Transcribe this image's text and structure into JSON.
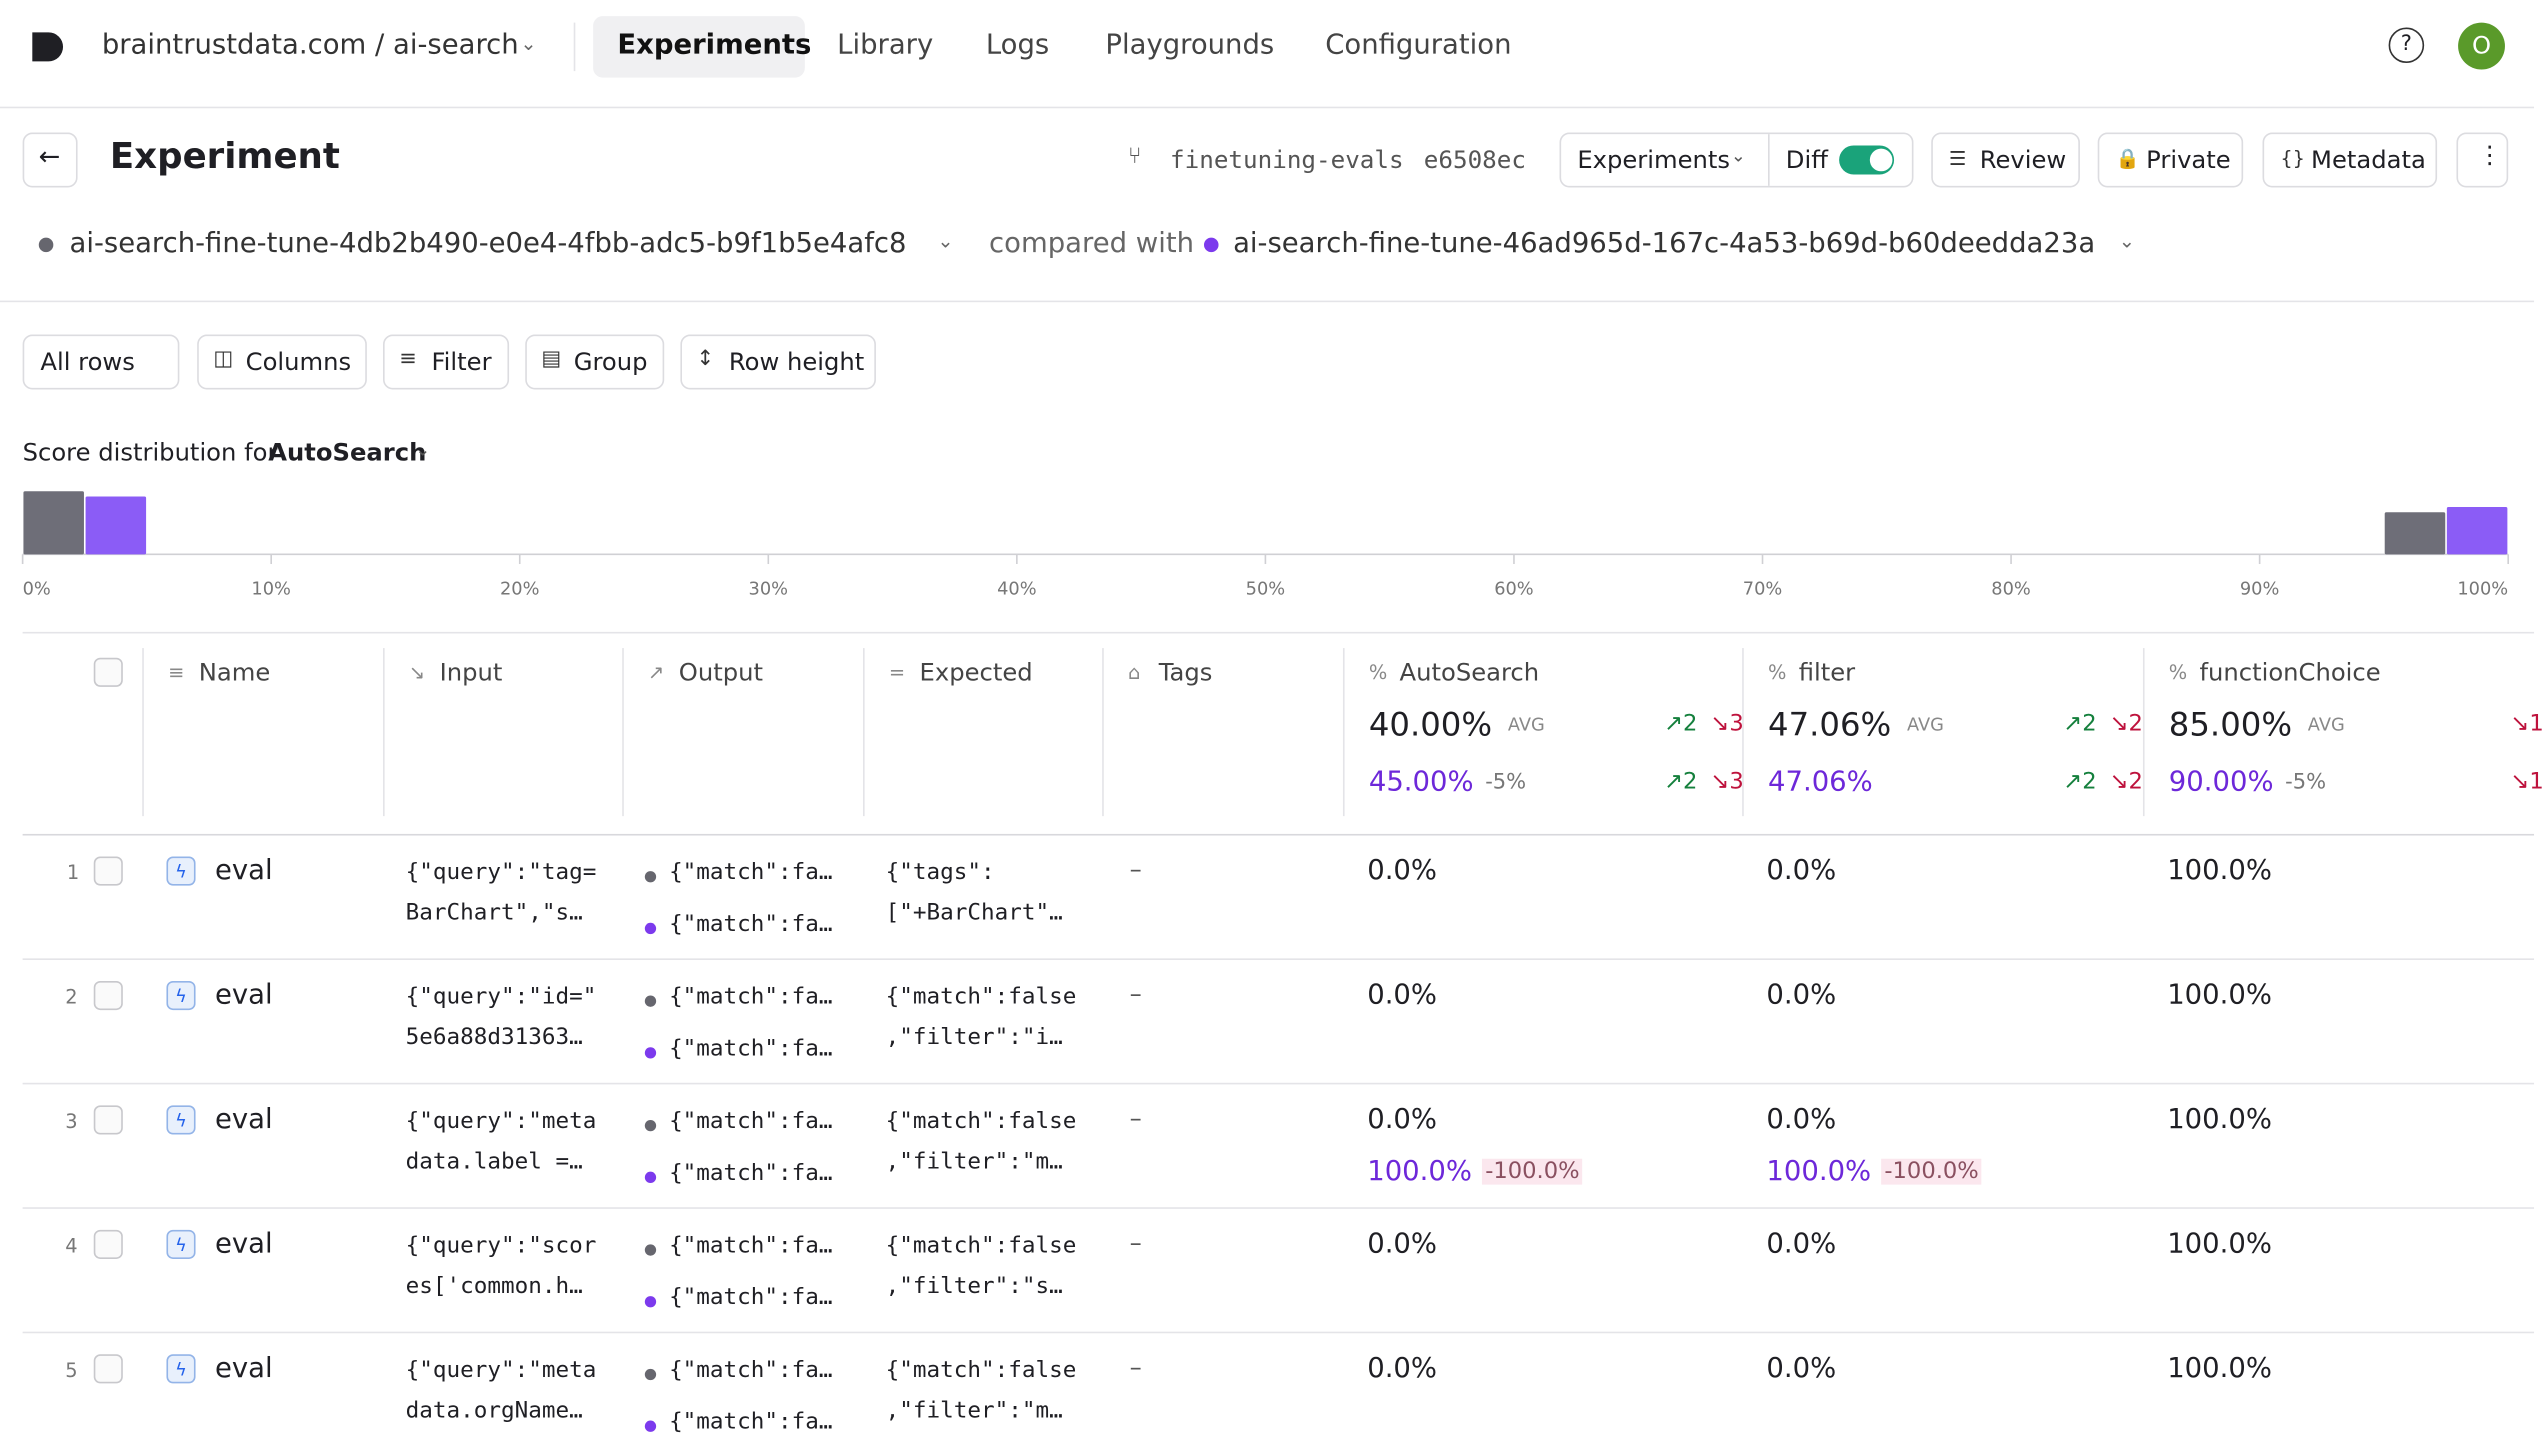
{
  "nav": {
    "project": "braintrustdata.com / ai-search",
    "tabs": [
      "Experiments",
      "Library",
      "Logs",
      "Playgrounds",
      "Configuration"
    ],
    "avatar": "O"
  },
  "header": {
    "title": "Experiment",
    "branch": "finetuning-evals",
    "commit": "e6508ec",
    "buttons": [
      "Experiments",
      "Diff",
      "Review",
      "Private",
      "Metadata"
    ]
  },
  "comparison": {
    "experiment": "ai-search-fine-tune-4db2b490-e0e4-4fbb-adc5-b9f1b5e4afc8",
    "label": "compared with",
    "baseline": "ai-search-fine-tune-46ad965d-167c-4a53-b69d-b60deedda23a"
  },
  "toolbar": [
    "All rows",
    "Columns",
    "Filter",
    "Group",
    "Row height"
  ],
  "chart_data": {
    "type": "bar",
    "title": "Score distribution for",
    "score": "AutoSearch",
    "xlim": [
      0,
      100
    ],
    "xticks": [
      {
        "value": 0,
        "label": "0%"
      },
      {
        "value": 10,
        "label": "10%"
      },
      {
        "value": 20,
        "label": "20%"
      },
      {
        "value": 30,
        "label": "30%"
      },
      {
        "value": 40,
        "label": "40%"
      },
      {
        "value": 50,
        "label": "50%"
      },
      {
        "value": 60,
        "label": "60%"
      },
      {
        "value": 70,
        "label": "70%"
      },
      {
        "value": 80,
        "label": "80%"
      },
      {
        "value": 90,
        "label": "90%"
      },
      {
        "value": 100,
        "label": "100%"
      }
    ],
    "x": [
      0,
      95
    ],
    "series": [
      {
        "color": "#6e6e78",
        "values": [
          60,
          40
        ]
      },
      {
        "color": "#8b5cf6",
        "values": [
          55,
          45
        ]
      }
    ]
  },
  "table": {
    "columns": [
      "Name",
      "Input",
      "Output",
      "Expected",
      "Tags"
    ],
    "avg_label": "AVG",
    "scores": [
      {
        "name": "AutoSearch",
        "avg": "40.00%",
        "compare": "45.00%",
        "diff": "-5%",
        "up": "2",
        "down": "3",
        "up2": "2",
        "down2": "3"
      },
      {
        "name": "filter",
        "avg": "47.06%",
        "compare": "47.06%",
        "up": "2",
        "down": "2",
        "up2": "2",
        "down2": "2"
      },
      {
        "name": "functionChoice",
        "avg": "85.00%",
        "compare": "90.00%",
        "diff": "-5%",
        "down": "1",
        "down2": "1"
      }
    ],
    "rows": [
      {
        "index": 1,
        "name": "eval",
        "input": [
          "{\"query\":\"tag=",
          "BarChart\",\"s…"
        ],
        "output": [
          "{\"match\":fa…",
          "{\"match\":fa…"
        ],
        "expected": [
          "{\"tags\":",
          "[\"+BarChart\"…"
        ],
        "tags": "–",
        "scores": [
          {
            "value": "0.0%"
          },
          {
            "value": "0.0%"
          },
          {
            "value": "100.0%"
          }
        ]
      },
      {
        "index": 2,
        "name": "eval",
        "input": [
          "{\"query\":\"id=\"",
          "5e6a88d31363…"
        ],
        "output": [
          "{\"match\":fa…",
          "{\"match\":fa…"
        ],
        "expected": [
          "{\"match\":false",
          ",\"filter\":\"i…"
        ],
        "tags": "–",
        "scores": [
          {
            "value": "0.0%"
          },
          {
            "value": "0.0%"
          },
          {
            "value": "100.0%"
          }
        ]
      },
      {
        "index": 3,
        "name": "eval",
        "input": [
          "{\"query\":\"meta",
          "data.label =…"
        ],
        "output": [
          "{\"match\":fa…",
          "{\"match\":fa…"
        ],
        "expected": [
          "{\"match\":false",
          ",\"filter\":\"m…"
        ],
        "tags": "–",
        "scores": [
          {
            "value": "0.0%",
            "compare": "100.0%",
            "diff": "-100.0%"
          },
          {
            "value": "0.0%",
            "compare": "100.0%",
            "diff": "-100.0%"
          },
          {
            "value": "100.0%"
          }
        ]
      },
      {
        "index": 4,
        "name": "eval",
        "input": [
          "{\"query\":\"scor",
          "es['common.h…"
        ],
        "output": [
          "{\"match\":fa…",
          "{\"match\":fa…"
        ],
        "expected": [
          "{\"match\":false",
          ",\"filter\":\"s…"
        ],
        "tags": "–",
        "scores": [
          {
            "value": "0.0%"
          },
          {
            "value": "0.0%"
          },
          {
            "value": "100.0%"
          }
        ]
      },
      {
        "index": 5,
        "name": "eval",
        "input": [
          "{\"query\":\"meta",
          "data.orgName…"
        ],
        "output": [
          "{\"match\":fa…",
          "{\"match\":fa…"
        ],
        "expected": [
          "{\"match\":false",
          ",\"filter\":\"m…"
        ],
        "tags": "–",
        "scores": [
          {
            "value": "0.0%"
          },
          {
            "value": "0.0%"
          },
          {
            "value": "100.0%"
          }
        ]
      }
    ]
  }
}
